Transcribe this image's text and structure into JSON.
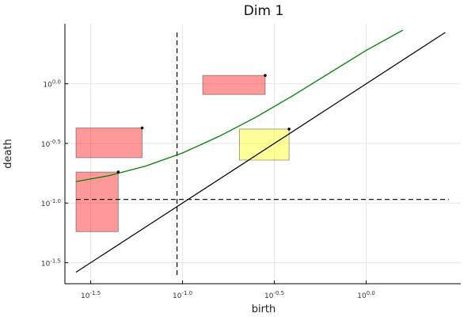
{
  "chart_data": {
    "type": "scatter",
    "title": "Dim 1",
    "xlabel": "birth",
    "ylabel": "death",
    "x_scale": "log10",
    "y_scale": "log10",
    "xlim": [
      -1.58,
      0.45
    ],
    "ylim": [
      -1.63,
      0.43
    ],
    "grid": true,
    "legend": "none",
    "x_ticks": [
      {
        "base": "10",
        "exp": "-1.5",
        "value": -1.5
      },
      {
        "base": "10",
        "exp": "-1.0",
        "value": -1.0
      },
      {
        "base": "10",
        "exp": "-0.5",
        "value": -0.5
      },
      {
        "base": "10",
        "exp": "0.0",
        "value": 0.0
      }
    ],
    "y_ticks": [
      {
        "base": "10",
        "exp": "-1.5",
        "value": -1.5
      },
      {
        "base": "10",
        "exp": "-1.0",
        "value": -1.0
      },
      {
        "base": "10",
        "exp": "-0.5",
        "value": -0.5
      },
      {
        "base": "10",
        "exp": "0.0",
        "value": 0.0
      }
    ],
    "points": [
      {
        "x": -1.35,
        "y": -0.74
      },
      {
        "x": -1.22,
        "y": -0.37
      },
      {
        "x": -0.55,
        "y": 0.07
      },
      {
        "x": -0.42,
        "y": -0.38
      }
    ],
    "boxes": [
      {
        "x0": -1.58,
        "x1": -1.35,
        "y0": -1.24,
        "y1": -0.74,
        "color": "#ff0000"
      },
      {
        "x0": -1.58,
        "x1": -1.22,
        "y0": -0.62,
        "y1": -0.37,
        "color": "#ff0000"
      },
      {
        "x0": -0.89,
        "x1": -0.55,
        "y0": -0.09,
        "y1": 0.07,
        "color": "#ff0000"
      },
      {
        "x0": -0.69,
        "x1": -0.42,
        "y0": -0.64,
        "y1": -0.38,
        "color": "#ffff00"
      }
    ],
    "diagonal": {
      "from": -1.58,
      "to": 0.43,
      "color": "#000000"
    },
    "threshold_curve": {
      "color": "#008000",
      "x": [
        -1.58,
        -1.4,
        -1.2,
        -1.0,
        -0.8,
        -0.6,
        -0.4,
        -0.2,
        0.0,
        0.2
      ],
      "y": [
        -0.82,
        -0.77,
        -0.69,
        -0.58,
        -0.44,
        -0.28,
        -0.1,
        0.09,
        0.28,
        0.45
      ]
    },
    "reference_lines": [
      {
        "orientation": "vertical",
        "value": -1.03,
        "style": "dashed",
        "color": "#000000"
      },
      {
        "orientation": "horizontal",
        "value": -0.97,
        "style": "dashed",
        "color": "#000000"
      }
    ]
  }
}
